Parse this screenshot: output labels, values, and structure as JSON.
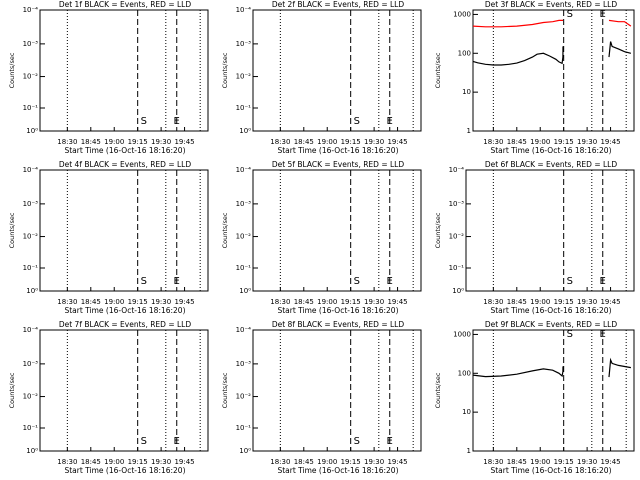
{
  "chart_data": [
    {
      "type": "line",
      "title": "Det 1f BLACK = Events, RED = LLD",
      "xlabel": "Start Time (16-Oct-16 18:16:20)",
      "ylabel": "Counts/sec",
      "xlim": [
        12.5,
        120
      ],
      "xticks": [
        {
          "value": 30,
          "label": "18:30"
        },
        {
          "value": 45,
          "label": "18:45"
        },
        {
          "value": 60,
          "label": "19:00"
        },
        {
          "value": 75,
          "label": "19:15"
        },
        {
          "value": 90,
          "label": "19:30"
        },
        {
          "value": 105,
          "label": "19:45"
        }
      ],
      "ylim": [
        0,
        1
      ],
      "yticks": [
        {
          "value": 1,
          "label": "10⁻⁴"
        },
        {
          "value": 0.72,
          "label": "10⁻³"
        },
        {
          "value": 0.45,
          "label": "10⁻²"
        },
        {
          "value": 0.19,
          "label": "10⁻¹"
        },
        {
          "value": 0,
          "label": "10⁰"
        }
      ],
      "log": false,
      "vlines": [
        {
          "x": 30,
          "style": "dotted"
        },
        {
          "x": 75,
          "style": "dashed"
        },
        {
          "x": 93,
          "style": "dotted"
        },
        {
          "x": 100,
          "style": "dashed"
        },
        {
          "x": 115,
          "style": "dotted"
        }
      ],
      "annotations": [
        {
          "text": "S",
          "x": 75,
          "position": "bottom"
        },
        {
          "text": "E",
          "x": 96,
          "position": "bottom"
        }
      ],
      "series": []
    },
    {
      "type": "line",
      "title": "Det 2f BLACK = Events, RED = LLD",
      "xlabel": "Start Time (16-Oct-16 18:16:20)",
      "ylabel": "Counts/sec",
      "xlim": [
        12.5,
        120
      ],
      "xticks": [
        {
          "value": 30,
          "label": "18:30"
        },
        {
          "value": 45,
          "label": "18:45"
        },
        {
          "value": 60,
          "label": "19:00"
        },
        {
          "value": 75,
          "label": "19:15"
        },
        {
          "value": 90,
          "label": "19:30"
        },
        {
          "value": 105,
          "label": "19:45"
        }
      ],
      "ylim": [
        0,
        1
      ],
      "yticks": [
        {
          "value": 1,
          "label": "10⁻⁴"
        },
        {
          "value": 0.72,
          "label": "10⁻³"
        },
        {
          "value": 0.45,
          "label": "10⁻²"
        },
        {
          "value": 0.19,
          "label": "10⁻¹"
        },
        {
          "value": 0,
          "label": "10⁰"
        }
      ],
      "log": false,
      "vlines": [
        {
          "x": 30,
          "style": "dotted"
        },
        {
          "x": 75,
          "style": "dashed"
        },
        {
          "x": 93,
          "style": "dotted"
        },
        {
          "x": 100,
          "style": "dashed"
        },
        {
          "x": 115,
          "style": "dotted"
        }
      ],
      "annotations": [
        {
          "text": "S",
          "x": 75,
          "position": "bottom"
        },
        {
          "text": "E",
          "x": 96,
          "position": "bottom"
        }
      ],
      "series": []
    },
    {
      "type": "line",
      "title": "Det 3f BLACK = Events, RED = LLD",
      "xlabel": "Start Time (16-Oct-16 18:16:20)",
      "ylabel": "Counts/sec",
      "xlim": [
        12.5,
        120
      ],
      "xticks": [
        {
          "value": 30,
          "label": "18:30"
        },
        {
          "value": 45,
          "label": "18:45"
        },
        {
          "value": 60,
          "label": "19:00"
        },
        {
          "value": 75,
          "label": "19:15"
        },
        {
          "value": 90,
          "label": "19:30"
        },
        {
          "value": 105,
          "label": "19:45"
        }
      ],
      "ylim": [
        1,
        1300
      ],
      "yticks": [
        1,
        10,
        100,
        1000
      ],
      "log": true,
      "vlines": [
        {
          "x": 30,
          "style": "dotted"
        },
        {
          "x": 75,
          "style": "dashed"
        },
        {
          "x": 93,
          "style": "dotted"
        },
        {
          "x": 100,
          "style": "dashed"
        },
        {
          "x": 115,
          "style": "dotted"
        }
      ],
      "annotations": [
        {
          "text": "S",
          "x": 75,
          "position": "top"
        },
        {
          "text": "E",
          "x": 96,
          "position": "top"
        }
      ],
      "series": [
        {
          "name": "Events",
          "color": "#000000",
          "x": [
            17,
            20,
            25,
            30,
            35,
            40,
            45,
            50,
            55,
            58,
            62,
            66,
            70,
            72,
            74,
            74.5,
            74.6,
            75,
            104,
            105,
            106,
            110,
            114,
            118
          ],
          "values": [
            62,
            57,
            52,
            50,
            50,
            52,
            56,
            65,
            80,
            95,
            100,
            85,
            70,
            60,
            55,
            80,
            150,
            null,
            80,
            200,
            150,
            130,
            110,
            100
          ]
        },
        {
          "name": "LLD",
          "color": "#ff0000",
          "x": [
            17,
            25,
            35,
            45,
            55,
            62,
            68,
            72,
            74.6,
            75,
            104,
            110,
            114,
            118
          ],
          "values": [
            500,
            480,
            480,
            500,
            550,
            620,
            650,
            700,
            700,
            null,
            700,
            650,
            650,
            500
          ]
        }
      ]
    },
    {
      "type": "line",
      "title": "Det 4f BLACK = Events, RED = LLD",
      "xlabel": "Start Time (16-Oct-16 18:16:20)",
      "ylabel": "Counts/sec",
      "xlim": [
        12.5,
        120
      ],
      "xticks": [
        {
          "value": 30,
          "label": "18:30"
        },
        {
          "value": 45,
          "label": "18:45"
        },
        {
          "value": 60,
          "label": "19:00"
        },
        {
          "value": 75,
          "label": "19:15"
        },
        {
          "value": 90,
          "label": "19:30"
        },
        {
          "value": 105,
          "label": "19:45"
        }
      ],
      "ylim": [
        0,
        1
      ],
      "yticks": [
        {
          "value": 1,
          "label": "10⁻⁴"
        },
        {
          "value": 0.72,
          "label": "10⁻³"
        },
        {
          "value": 0.45,
          "label": "10⁻²"
        },
        {
          "value": 0.19,
          "label": "10⁻¹"
        },
        {
          "value": 0,
          "label": "10⁰"
        }
      ],
      "log": false,
      "vlines": [
        {
          "x": 30,
          "style": "dotted"
        },
        {
          "x": 75,
          "style": "dashed"
        },
        {
          "x": 93,
          "style": "dotted"
        },
        {
          "x": 100,
          "style": "dashed"
        },
        {
          "x": 115,
          "style": "dotted"
        }
      ],
      "annotations": [
        {
          "text": "S",
          "x": 75,
          "position": "bottom"
        },
        {
          "text": "E",
          "x": 96,
          "position": "bottom"
        }
      ],
      "series": []
    },
    {
      "type": "line",
      "title": "Det 5f BLACK = Events, RED = LLD",
      "xlabel": "Start Time (16-Oct-16 18:16:20)",
      "ylabel": "Counts/sec",
      "xlim": [
        12.5,
        120
      ],
      "xticks": [
        {
          "value": 30,
          "label": "18:30"
        },
        {
          "value": 45,
          "label": "18:45"
        },
        {
          "value": 60,
          "label": "19:00"
        },
        {
          "value": 75,
          "label": "19:15"
        },
        {
          "value": 90,
          "label": "19:30"
        },
        {
          "value": 105,
          "label": "19:45"
        }
      ],
      "ylim": [
        0,
        1
      ],
      "yticks": [
        {
          "value": 1,
          "label": "10⁻⁴"
        },
        {
          "value": 0.72,
          "label": "10⁻³"
        },
        {
          "value": 0.45,
          "label": "10⁻²"
        },
        {
          "value": 0.19,
          "label": "10⁻¹"
        },
        {
          "value": 0,
          "label": "10⁰"
        }
      ],
      "log": false,
      "vlines": [
        {
          "x": 30,
          "style": "dotted"
        },
        {
          "x": 75,
          "style": "dashed"
        },
        {
          "x": 93,
          "style": "dotted"
        },
        {
          "x": 100,
          "style": "dashed"
        },
        {
          "x": 115,
          "style": "dotted"
        }
      ],
      "annotations": [
        {
          "text": "S",
          "x": 75,
          "position": "bottom"
        },
        {
          "text": "E",
          "x": 96,
          "position": "bottom"
        }
      ],
      "series": []
    },
    {
      "type": "line",
      "title": "Det 6f BLACK = Events, RED = LLD",
      "xlabel": "Start Time (16-Oct-16 18:16:20)",
      "ylabel": "Counts/sec",
      "xlim": [
        12.5,
        120
      ],
      "xticks": [
        {
          "value": 30,
          "label": "18:30"
        },
        {
          "value": 45,
          "label": "18:45"
        },
        {
          "value": 60,
          "label": "19:00"
        },
        {
          "value": 75,
          "label": "19:15"
        },
        {
          "value": 90,
          "label": "19:30"
        },
        {
          "value": 105,
          "label": "19:45"
        }
      ],
      "ylim": [
        0,
        1
      ],
      "yticks": [
        {
          "value": 1,
          "label": "10⁻⁴"
        },
        {
          "value": 0.72,
          "label": "10⁻³"
        },
        {
          "value": 0.45,
          "label": "10⁻²"
        },
        {
          "value": 0.19,
          "label": "10⁻¹"
        },
        {
          "value": 0,
          "label": "10⁰"
        }
      ],
      "log": false,
      "vlines": [
        {
          "x": 30,
          "style": "dotted"
        },
        {
          "x": 75,
          "style": "dashed"
        },
        {
          "x": 93,
          "style": "dotted"
        },
        {
          "x": 100,
          "style": "dashed"
        },
        {
          "x": 115,
          "style": "dotted"
        }
      ],
      "annotations": [
        {
          "text": "S",
          "x": 75,
          "position": "bottom"
        },
        {
          "text": "E",
          "x": 96,
          "position": "bottom"
        }
      ],
      "series": []
    },
    {
      "type": "line",
      "title": "Det 7f BLACK = Events, RED = LLD",
      "xlabel": "Start Time (16-Oct-16 18:16:20)",
      "ylabel": "Counts/sec",
      "xlim": [
        12.5,
        120
      ],
      "xticks": [
        {
          "value": 30,
          "label": "18:30"
        },
        {
          "value": 45,
          "label": "18:45"
        },
        {
          "value": 60,
          "label": "19:00"
        },
        {
          "value": 75,
          "label": "19:15"
        },
        {
          "value": 90,
          "label": "19:30"
        },
        {
          "value": 105,
          "label": "19:45"
        }
      ],
      "ylim": [
        0,
        1
      ],
      "yticks": [
        {
          "value": 1,
          "label": "10⁻⁴"
        },
        {
          "value": 0.72,
          "label": "10⁻³"
        },
        {
          "value": 0.45,
          "label": "10⁻²"
        },
        {
          "value": 0.19,
          "label": "10⁻¹"
        },
        {
          "value": 0,
          "label": "10⁰"
        }
      ],
      "log": false,
      "vlines": [
        {
          "x": 30,
          "style": "dotted"
        },
        {
          "x": 75,
          "style": "dashed"
        },
        {
          "x": 93,
          "style": "dotted"
        },
        {
          "x": 100,
          "style": "dashed"
        },
        {
          "x": 115,
          "style": "dotted"
        }
      ],
      "annotations": [
        {
          "text": "S",
          "x": 75,
          "position": "bottom"
        },
        {
          "text": "E",
          "x": 96,
          "position": "bottom"
        }
      ],
      "series": []
    },
    {
      "type": "line",
      "title": "Det 8f BLACK = Events, RED = LLD",
      "xlabel": "Start Time (16-Oct-16 18:16:20)",
      "ylabel": "Counts/sec",
      "xlim": [
        12.5,
        120
      ],
      "xticks": [
        {
          "value": 30,
          "label": "18:30"
        },
        {
          "value": 45,
          "label": "18:45"
        },
        {
          "value": 60,
          "label": "19:00"
        },
        {
          "value": 75,
          "label": "19:15"
        },
        {
          "value": 90,
          "label": "19:30"
        },
        {
          "value": 105,
          "label": "19:45"
        }
      ],
      "ylim": [
        0,
        1
      ],
      "yticks": [
        {
          "value": 1,
          "label": "10⁻⁴"
        },
        {
          "value": 0.72,
          "label": "10⁻³"
        },
        {
          "value": 0.45,
          "label": "10⁻²"
        },
        {
          "value": 0.19,
          "label": "10⁻¹"
        },
        {
          "value": 0,
          "label": "10⁰"
        }
      ],
      "log": false,
      "vlines": [
        {
          "x": 30,
          "style": "dotted"
        },
        {
          "x": 75,
          "style": "dashed"
        },
        {
          "x": 93,
          "style": "dotted"
        },
        {
          "x": 100,
          "style": "dashed"
        },
        {
          "x": 115,
          "style": "dotted"
        }
      ],
      "annotations": [
        {
          "text": "S",
          "x": 75,
          "position": "bottom"
        },
        {
          "text": "E",
          "x": 96,
          "position": "bottom"
        }
      ],
      "series": []
    },
    {
      "type": "line",
      "title": "Det 9f BLACK = Events, RED = LLD",
      "xlabel": "Start Time (16-Oct-16 18:16:20)",
      "ylabel": "Counts/sec",
      "xlim": [
        12.5,
        120
      ],
      "xticks": [
        {
          "value": 30,
          "label": "18:30"
        },
        {
          "value": 45,
          "label": "18:45"
        },
        {
          "value": 60,
          "label": "19:00"
        },
        {
          "value": 75,
          "label": "19:15"
        },
        {
          "value": 90,
          "label": "19:30"
        },
        {
          "value": 105,
          "label": "19:45"
        }
      ],
      "ylim": [
        1,
        1300
      ],
      "yticks": [
        1,
        10,
        100,
        1000
      ],
      "log": true,
      "vlines": [
        {
          "x": 30,
          "style": "dotted"
        },
        {
          "x": 75,
          "style": "dashed"
        },
        {
          "x": 93,
          "style": "dotted"
        },
        {
          "x": 100,
          "style": "dashed"
        },
        {
          "x": 115,
          "style": "dotted"
        }
      ],
      "annotations": [
        {
          "text": "S",
          "x": 75,
          "position": "top"
        },
        {
          "text": "E",
          "x": 96,
          "position": "top"
        }
      ],
      "series": [
        {
          "name": "Events",
          "color": "#000000",
          "x": [
            17,
            25,
            35,
            45,
            55,
            62,
            68,
            72,
            74,
            74.5,
            74.6,
            75,
            104,
            105,
            106,
            110,
            118
          ],
          "values": [
            90,
            82,
            85,
            95,
            115,
            130,
            120,
            100,
            85,
            110,
            150,
            null,
            80,
            220,
            180,
            160,
            140
          ]
        }
      ]
    }
  ]
}
